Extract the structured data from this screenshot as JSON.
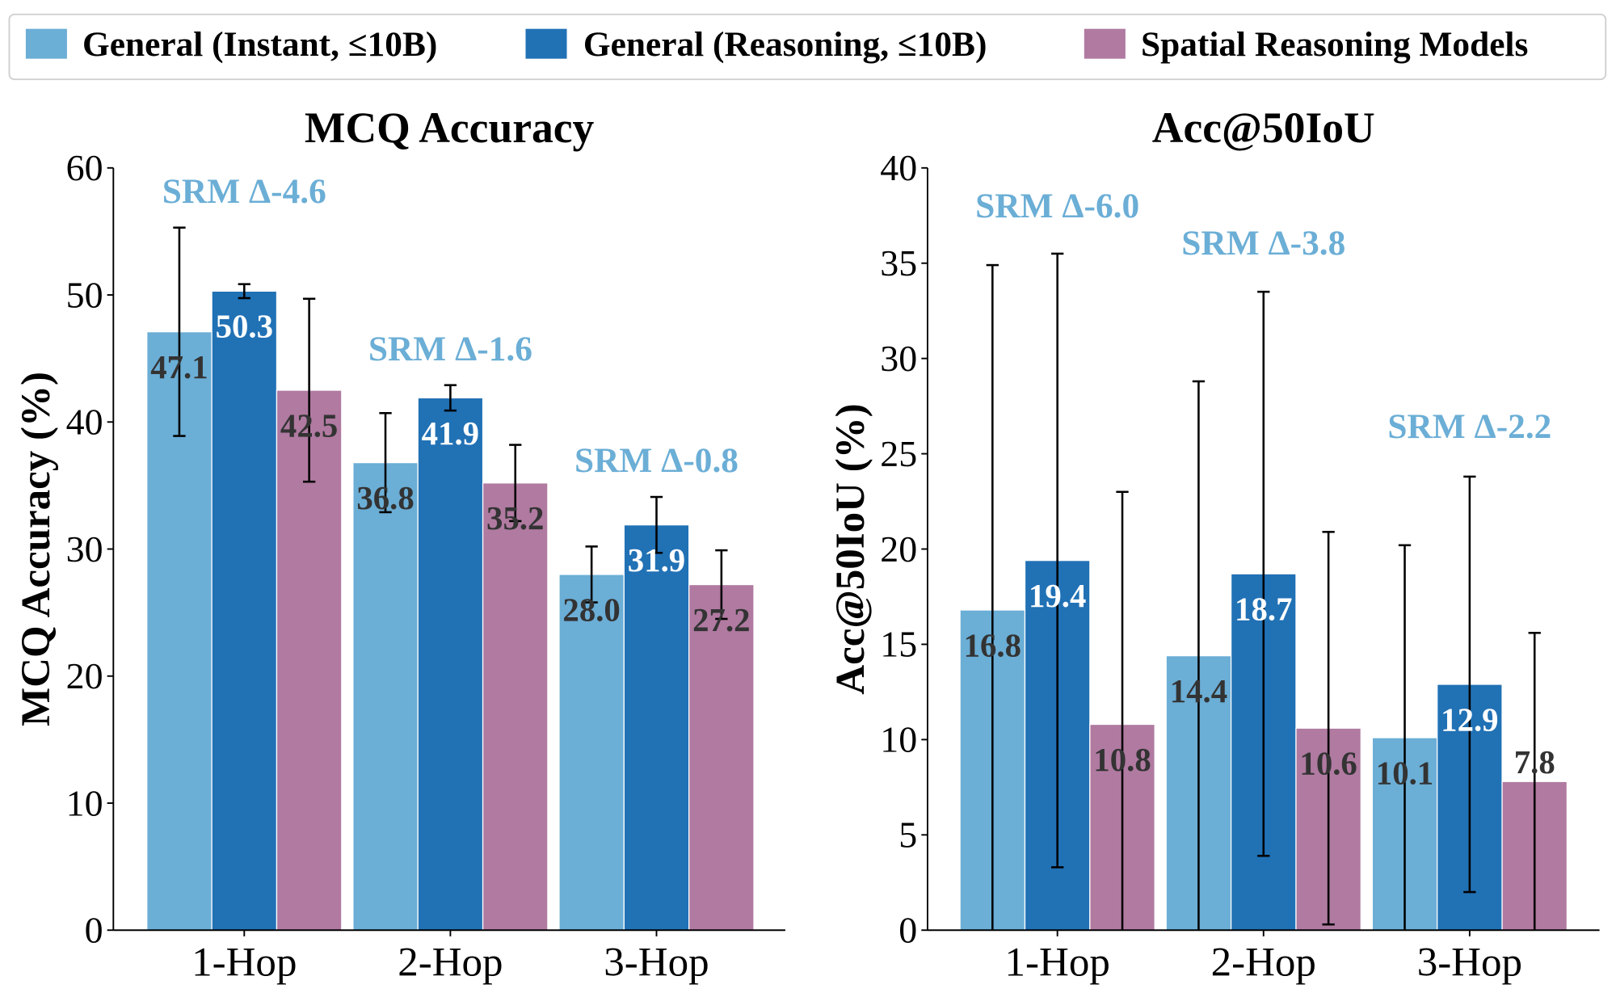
{
  "legend": {
    "placement": "top",
    "items": [
      {
        "label": "General (Instant, ≤10B)",
        "color": "#6baed6"
      },
      {
        "label": "General (Reasoning, ≤10B)",
        "color": "#2171b5"
      },
      {
        "label": "Spatial Reasoning Models",
        "color": "#b07aa1"
      }
    ]
  },
  "chart_data": [
    {
      "type": "bar",
      "title": "MCQ Accuracy",
      "ylabel": "MCQ Accuracy (%)",
      "xlabel": "",
      "ylim": [
        0,
        60
      ],
      "yticks": [
        0,
        10,
        20,
        30,
        40,
        50,
        60
      ],
      "grid": false,
      "categories": [
        "1-Hop",
        "2-Hop",
        "3-Hop"
      ],
      "series": [
        {
          "name": "General (Instant, ≤10B)",
          "values": [
            47.1,
            36.8,
            28.0
          ],
          "errors": [
            8.2,
            3.9,
            2.2
          ],
          "labels": [
            "47.1",
            "36.8",
            "28.0"
          ]
        },
        {
          "name": "General (Reasoning, ≤10B)",
          "values": [
            50.3,
            41.9,
            31.9
          ],
          "errors": [
            0.55,
            1.0,
            2.2
          ],
          "labels": [
            "50.3",
            "41.9",
            "31.9"
          ]
        },
        {
          "name": "Spatial Reasoning Models",
          "values": [
            42.5,
            35.2,
            27.2
          ],
          "errors": [
            7.2,
            3.0,
            2.7
          ],
          "labels": [
            "42.5",
            "35.2",
            "27.2"
          ]
        }
      ],
      "annotations": [
        "SRM Δ-4.6",
        "SRM Δ-1.6",
        "SRM Δ-0.8"
      ],
      "annotation_color": "#6baed6"
    },
    {
      "type": "bar",
      "title": "Acc@50IoU",
      "ylabel": "Acc@50IoU (%)",
      "xlabel": "",
      "ylim": [
        0,
        40
      ],
      "yticks": [
        0,
        5,
        10,
        15,
        20,
        25,
        30,
        35,
        40
      ],
      "grid": false,
      "categories": [
        "1-Hop",
        "2-Hop",
        "3-Hop"
      ],
      "series": [
        {
          "name": "General (Instant, ≤10B)",
          "values": [
            16.8,
            14.4,
            10.1
          ],
          "errors": [
            18.1,
            14.4,
            10.1
          ],
          "labels": [
            "16.8",
            "14.4",
            "10.1"
          ]
        },
        {
          "name": "General (Reasoning, ≤10B)",
          "values": [
            19.4,
            18.7,
            12.9
          ],
          "errors": [
            16.1,
            14.8,
            10.9
          ],
          "labels": [
            "19.4",
            "18.7",
            "12.9"
          ]
        },
        {
          "name": "Spatial Reasoning Models",
          "values": [
            10.8,
            10.6,
            7.8
          ],
          "errors": [
            12.2,
            10.3,
            7.8
          ],
          "labels": [
            "10.8",
            "10.6",
            "7.8"
          ]
        }
      ],
      "annotations": [
        "SRM Δ-6.0",
        "SRM Δ-3.8",
        "SRM Δ-2.2"
      ],
      "annotation_color": "#6baed6"
    }
  ]
}
